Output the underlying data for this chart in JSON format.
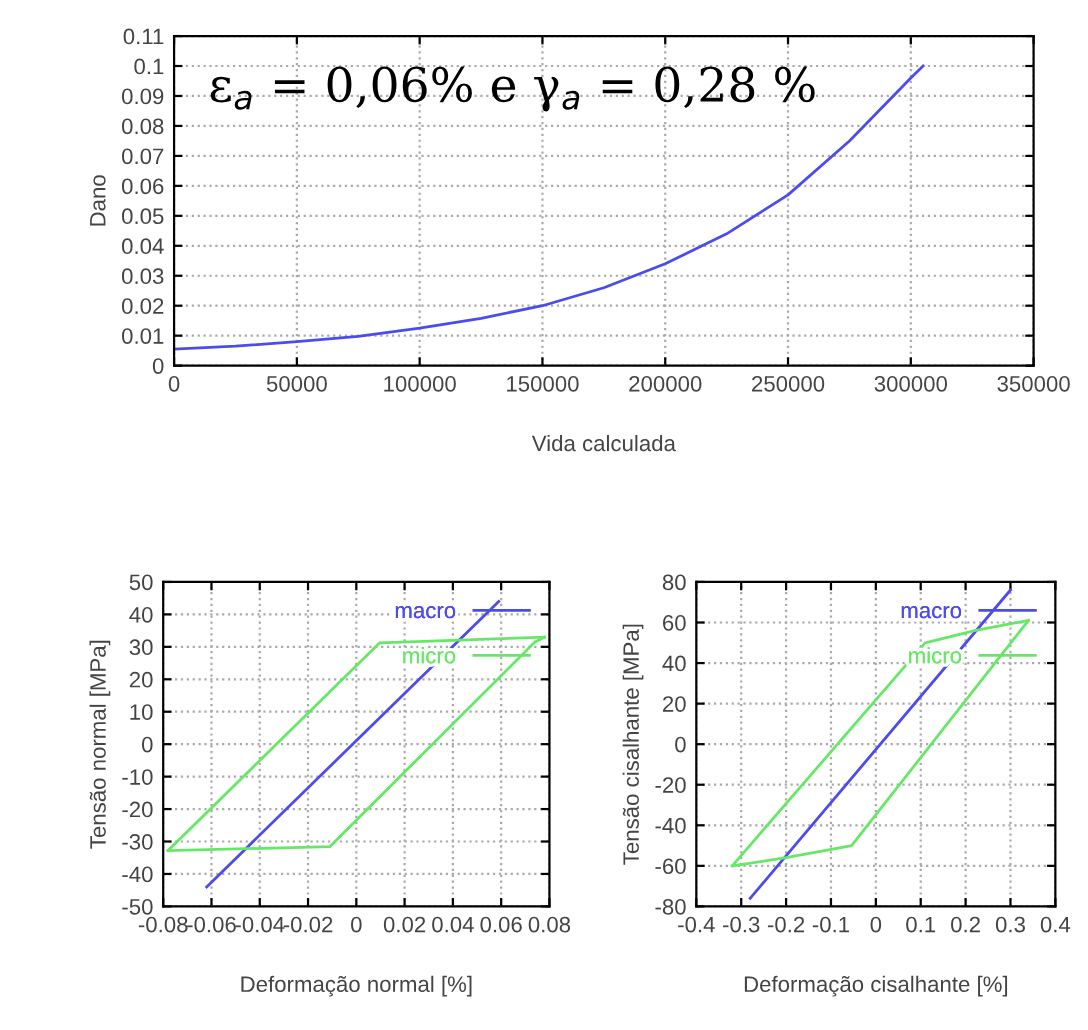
{
  "chart_data": [
    {
      "type": "line",
      "xlabel": "Vida calculada",
      "ylabel": "Dano",
      "xlim": [
        0,
        350000
      ],
      "xticks": [
        0,
        50000,
        100000,
        150000,
        200000,
        250000,
        300000,
        350000
      ],
      "ylim": [
        0,
        0.11
      ],
      "yticks": [
        0,
        0.01,
        0.02,
        0.03,
        0.04,
        0.05,
        0.06,
        0.07,
        0.08,
        0.09,
        0.1,
        0.11
      ],
      "grid": true,
      "series": [
        {
          "color": "#4b4bf0",
          "x": [
            0,
            25000,
            50000,
            75000,
            100000,
            125000,
            150000,
            175000,
            200000,
            225000,
            250000,
            275000,
            300000,
            305000
          ],
          "values": [
            0.0055,
            0.0065,
            0.008,
            0.0098,
            0.0125,
            0.0158,
            0.02,
            0.026,
            0.034,
            0.044,
            0.057,
            0.075,
            0.096,
            0.1
          ]
        }
      ],
      "annotations": [
        "ε$_{a}$ = 0,06% e γ$_{a}$ = 0,28 %"
      ]
    },
    {
      "type": "line",
      "xlabel": "Deformação normal [%]",
      "ylabel": "Tensão normal [MPa]",
      "xlim": [
        -0.08,
        0.08
      ],
      "xticks": [
        -0.08,
        -0.06,
        -0.04,
        -0.02,
        0,
        0.02,
        0.04,
        0.06,
        0.08
      ],
      "ylim": [
        -50,
        50
      ],
      "yticks": [
        -50,
        -40,
        -30,
        -20,
        -10,
        0,
        10,
        20,
        30,
        40,
        50
      ],
      "grid": true,
      "legend": "top right",
      "series": [
        {
          "name": "macro",
          "color": "#4b4bf0",
          "x": [
            -0.062,
            0.059
          ],
          "values": [
            -44,
            44
          ]
        },
        {
          "name": "micro",
          "color": "#66e866",
          "x": [
            -0.078,
            -0.011,
            0.074,
            0.078
          ],
          "values": [
            -32.8,
            -31.6,
            31.5,
            33
          ]
        },
        {
          "color": "#66e866",
          "x": [
            -0.078,
            0.0096,
            0.078
          ],
          "values": [
            -32.8,
            31.2,
            33
          ]
        }
      ]
    },
    {
      "type": "line",
      "xlabel": "Deformação cisalhante [%]",
      "ylabel": "Tensão cisalhante [MPa]",
      "xlim": [
        -0.4,
        0.4
      ],
      "xticks": [
        -0.4,
        -0.3,
        -0.2,
        -0.1,
        0,
        0.1,
        0.2,
        0.3,
        0.4
      ],
      "ylim": [
        -80,
        80
      ],
      "yticks": [
        -80,
        -60,
        -40,
        -20,
        0,
        20,
        40,
        60,
        80
      ],
      "grid": true,
      "legend": "top right",
      "series": [
        {
          "name": "macro",
          "color": "#4b4bf0",
          "x": [
            -0.28,
            0.3
          ],
          "values": [
            -76,
            76
          ]
        },
        {
          "name": "micro",
          "color": "#66e866",
          "x": [
            -0.32,
            -0.2,
            -0.054,
            0.34
          ],
          "values": [
            -60,
            -56,
            -50,
            61
          ]
        },
        {
          "color": "#66e866",
          "x": [
            -0.32,
            0.11,
            0.22,
            0.34
          ],
          "values": [
            -60,
            50,
            56,
            61
          ]
        }
      ]
    }
  ]
}
